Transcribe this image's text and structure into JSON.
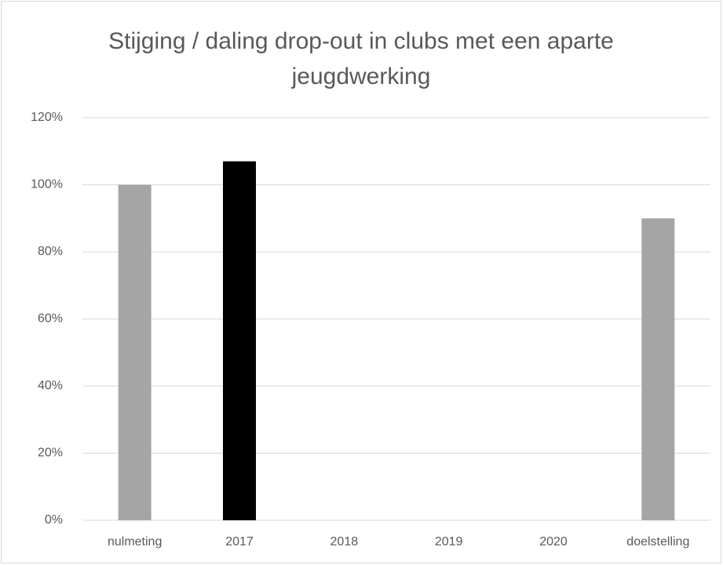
{
  "chart_data": {
    "type": "bar",
    "title": "Stijging / daling  drop-out in clubs met een aparte jeugdwerking",
    "categories": [
      "nulmeting",
      "2017",
      "2018",
      "2019",
      "2020",
      "doelstelling"
    ],
    "values": [
      100,
      107,
      null,
      null,
      null,
      90
    ],
    "colors": [
      "#a5a5a5",
      "#000000",
      "#000000",
      "#000000",
      "#000000",
      "#a5a5a5"
    ],
    "ylim": [
      0,
      120
    ],
    "yticks": [
      {
        "value": 0,
        "label": "0%"
      },
      {
        "value": 20,
        "label": "20%"
      },
      {
        "value": 40,
        "label": "40%"
      },
      {
        "value": 60,
        "label": "60%"
      },
      {
        "value": 80,
        "label": "80%"
      },
      {
        "value": 100,
        "label": "100%"
      },
      {
        "value": 120,
        "label": "120%"
      }
    ],
    "grid": true
  }
}
